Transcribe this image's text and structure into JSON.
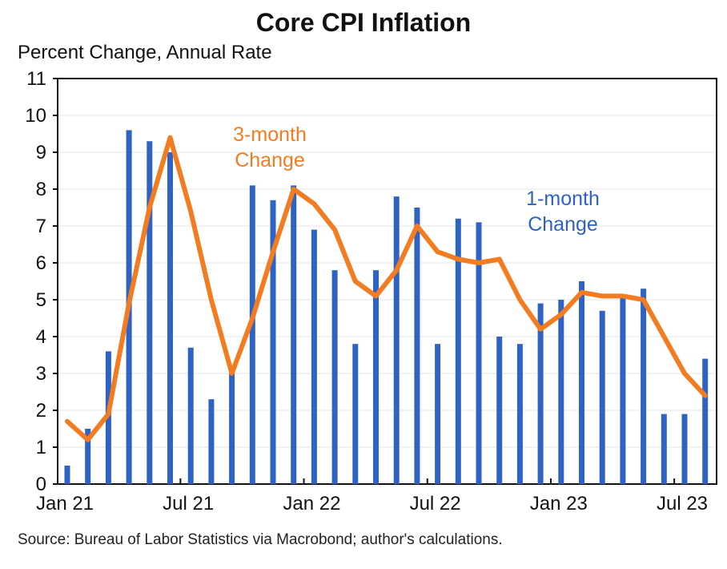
{
  "chart_data": {
    "type": "bar",
    "title": "Core CPI Inflation",
    "ylabel": "Percent Change, Annual Rate",
    "xlabel": "",
    "ylim": [
      0,
      11
    ],
    "yticks": [
      "0",
      "1",
      "2",
      "3",
      "4",
      "5",
      "6",
      "7",
      "8",
      "9",
      "10",
      "11"
    ],
    "xtick_labels": [
      {
        "label": "Jan 21",
        "index": 0
      },
      {
        "label": "Jul 21",
        "index": 6
      },
      {
        "label": "Jan 22",
        "index": 12
      },
      {
        "label": "Jul 22",
        "index": 18
      },
      {
        "label": "Jan 23",
        "index": 24
      },
      {
        "label": "Jul 23",
        "index": 30
      }
    ],
    "categories": [
      "Jan 21",
      "Feb 21",
      "Mar 21",
      "Apr 21",
      "May 21",
      "Jun 21",
      "Jul 21",
      "Aug 21",
      "Sep 21",
      "Oct 21",
      "Nov 21",
      "Dec 21",
      "Jan 22",
      "Feb 22",
      "Mar 22",
      "Apr 22",
      "May 22",
      "Jun 22",
      "Jul 22",
      "Aug 22",
      "Sep 22",
      "Oct 22",
      "Nov 22",
      "Dec 22",
      "Jan 23",
      "Feb 23",
      "Mar 23",
      "Apr 23",
      "May 23",
      "Jun 23",
      "Jul 23",
      "Aug 23"
    ],
    "grid": true,
    "series": [
      {
        "name": "1-month Change",
        "label_lines": [
          "1-month",
          "Change"
        ],
        "type": "bar",
        "color": "#2e62c4",
        "values": [
          0.5,
          1.5,
          3.6,
          9.6,
          9.3,
          9.0,
          3.7,
          2.3,
          3.0,
          8.1,
          7.7,
          8.1,
          6.9,
          5.8,
          3.8,
          5.8,
          7.8,
          7.5,
          3.8,
          7.2,
          7.1,
          4.0,
          3.8,
          4.9,
          5.0,
          5.5,
          4.7,
          5.1,
          5.3,
          1.9,
          1.9,
          3.4
        ]
      },
      {
        "name": "3-month Change",
        "label_lines": [
          "3-month",
          "Change"
        ],
        "type": "line",
        "color": "#f47c20",
        "values": [
          1.7,
          1.2,
          1.9,
          4.9,
          7.5,
          9.4,
          7.4,
          5.0,
          3.0,
          4.5,
          6.3,
          8.0,
          7.6,
          6.9,
          5.5,
          5.1,
          5.8,
          7.0,
          6.3,
          6.1,
          6.0,
          6.1,
          5.0,
          4.2,
          4.6,
          5.2,
          5.1,
          5.1,
          5.0,
          4.0,
          3.0,
          2.4
        ]
      }
    ],
    "source": "Source: Bureau of Labor Statistics via Macrobond; author's calculations."
  }
}
